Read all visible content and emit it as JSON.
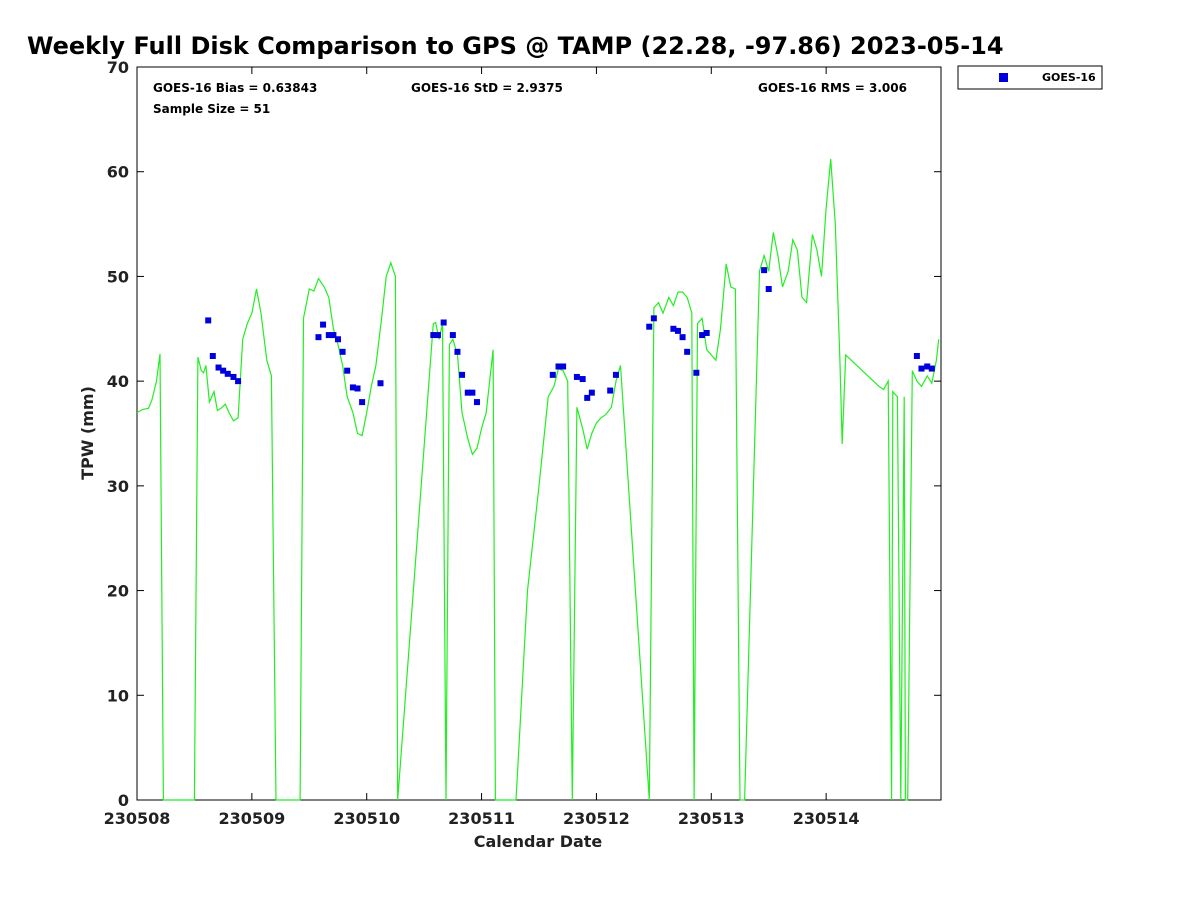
{
  "chart_data": {
    "type": "scatter",
    "title": "Weekly Full Disk Comparison to GPS @ TAMP (22.28, -97.86) 2023-05-14",
    "xlabel": "Calendar Date",
    "ylabel": "TPW (mm)",
    "xlim": [
      230508,
      230515
    ],
    "ylim": [
      0,
      70
    ],
    "x_ticks": [
      "230508",
      "230509",
      "230510",
      "230511",
      "230512",
      "230513",
      "230514"
    ],
    "y_ticks": [
      0,
      10,
      20,
      30,
      40,
      50,
      60,
      70
    ],
    "grid": false,
    "legend_position": "top-right",
    "stats": {
      "bias": "GOES-16 Bias = 0.63843",
      "std": "GOES-16 StD = 2.9375",
      "rms": "GOES-16 RMS = 3.006",
      "sample": "Sample Size = 51"
    },
    "series": [
      {
        "name": "GOES-16",
        "kind": "scatter",
        "color": "#0000dd",
        "x": [
          230508.62,
          230508.66,
          230508.71,
          230508.75,
          230508.79,
          230508.84,
          230508.88,
          230509.58,
          230509.62,
          230509.67,
          230509.71,
          230509.75,
          230509.79,
          230509.83,
          230509.88,
          230509.92,
          230509.96,
          230510.12,
          230510.58,
          230510.62,
          230510.67,
          230510.75,
          230510.79,
          230510.83,
          230510.88,
          230510.92,
          230510.96,
          230511.62,
          230511.67,
          230511.71,
          230511.83,
          230511.88,
          230511.92,
          230511.96,
          230512.12,
          230512.17,
          230512.46,
          230512.5,
          230512.67,
          230512.71,
          230512.75,
          230512.79,
          230512.87,
          230512.92,
          230512.96,
          230513.46,
          230513.5,
          230514.79,
          230514.83,
          230514.88,
          230514.92
        ],
        "y": [
          45.8,
          42.4,
          41.3,
          41.0,
          40.7,
          40.4,
          40.0,
          44.2,
          45.4,
          44.4,
          44.4,
          44.0,
          42.8,
          41.0,
          39.4,
          39.3,
          38.0,
          39.8,
          44.4,
          44.4,
          45.6,
          44.4,
          42.8,
          40.6,
          38.9,
          38.9,
          38.0,
          40.6,
          41.4,
          41.4,
          40.4,
          40.2,
          38.4,
          38.9,
          39.1,
          40.6,
          45.2,
          46.0,
          45.0,
          44.8,
          44.2,
          42.8,
          40.8,
          44.4,
          44.6,
          50.6,
          48.8,
          42.4,
          41.2,
          41.4,
          41.2
        ]
      },
      {
        "name": "",
        "kind": "line",
        "color": "#22ee22",
        "x": [
          230508.0,
          230508.05,
          230508.1,
          230508.13,
          230508.17,
          230508.2,
          230508.23,
          230508.24,
          230508.5,
          230508.53,
          230508.56,
          230508.58,
          230508.6,
          230508.63,
          230508.67,
          230508.7,
          230508.73,
          230508.77,
          230508.8,
          230508.84,
          230508.88,
          230508.92,
          230508.96,
          230509.0,
          230509.04,
          230509.08,
          230509.13,
          230509.17,
          230509.21,
          230509.24,
          230509.42,
          230509.45,
          230509.5,
          230509.54,
          230509.58,
          230509.63,
          230509.67,
          230509.71,
          230509.75,
          230509.79,
          230509.83,
          230509.88,
          230509.92,
          230509.96,
          230510.0,
          230510.04,
          230510.08,
          230510.13,
          230510.17,
          230510.21,
          230510.25,
          230510.27,
          230510.58,
          230510.6,
          230510.63,
          230510.66,
          230510.69,
          230510.72,
          230510.75,
          230510.79,
          230510.83,
          230510.88,
          230510.92,
          230510.96,
          230511.0,
          230511.04,
          230511.08,
          230511.1,
          230511.12,
          230511.21,
          230511.3,
          230511.4,
          230511.5,
          230511.58,
          230511.63,
          230511.67,
          230511.71,
          230511.75,
          230511.79,
          230511.83,
          230511.88,
          230511.92,
          230511.96,
          230512.0,
          230512.04,
          230512.08,
          230512.13,
          230512.17,
          230512.21,
          230512.46,
          230512.5,
          230512.54,
          230512.58,
          230512.63,
          230512.67,
          230512.71,
          230512.75,
          230512.79,
          230512.83,
          230512.85,
          230512.88,
          230512.92,
          230512.96,
          230513.0,
          230513.04,
          230513.08,
          230513.13,
          230513.17,
          230513.21,
          230513.25,
          230513.29,
          230513.42,
          230513.46,
          230513.5,
          230513.54,
          230513.58,
          230513.62,
          230513.67,
          230513.71,
          230513.75,
          230513.79,
          230513.83,
          230513.88,
          230513.92,
          230513.96,
          230514.0,
          230514.04,
          230514.08,
          230514.12,
          230514.14,
          230514.17,
          230514.46,
          230514.5,
          230514.54,
          230514.57,
          230514.58,
          230514.62,
          230514.65,
          230514.68,
          230514.69,
          230514.71,
          230514.75,
          230514.79,
          230514.83,
          230514.88,
          230514.92,
          230514.96,
          230514.98
        ],
        "y": [
          37.0,
          37.3,
          37.4,
          38.2,
          40.0,
          42.6,
          0,
          0,
          0,
          42.3,
          41.0,
          40.8,
          41.5,
          38.0,
          39.0,
          37.2,
          37.4,
          37.8,
          37.0,
          36.2,
          36.5,
          44.0,
          45.5,
          46.5,
          48.8,
          46.5,
          42.0,
          40.5,
          0,
          0,
          0,
          46.0,
          48.8,
          48.6,
          49.8,
          49.0,
          48.0,
          45.0,
          43.5,
          41.5,
          38.5,
          37.0,
          35.0,
          34.8,
          37.0,
          39.5,
          41.5,
          46.0,
          50.0,
          51.3,
          50.0,
          0,
          45.5,
          45.6,
          44.0,
          45.5,
          0,
          43.5,
          44.0,
          42.5,
          37.0,
          34.5,
          33.0,
          33.6,
          35.5,
          37.0,
          41.0,
          43.0,
          0,
          0,
          0,
          20.0,
          30.0,
          38.5,
          39.5,
          41.2,
          41.0,
          40.0,
          0,
          37.5,
          35.5,
          33.5,
          35.0,
          36.0,
          36.5,
          36.8,
          37.5,
          40.0,
          41.5,
          0,
          47.0,
          47.5,
          46.5,
          48.0,
          47.2,
          48.5,
          48.5,
          48.0,
          46.5,
          0,
          45.5,
          46.0,
          43.0,
          42.5,
          42.0,
          45.0,
          51.2,
          49.0,
          48.8,
          0,
          0,
          50.5,
          52.0,
          50.5,
          54.2,
          52.0,
          49.0,
          50.5,
          53.5,
          52.5,
          48.0,
          47.5,
          54.0,
          52.5,
          50.0,
          56.5,
          61.2,
          55.0,
          42.0,
          34.0,
          42.5,
          39.5,
          39.2,
          40.0,
          0,
          39.0,
          38.5,
          0,
          38.5,
          0,
          0,
          41.0,
          40.0,
          39.5,
          40.5,
          39.8,
          42.0,
          44.0
        ]
      }
    ]
  }
}
